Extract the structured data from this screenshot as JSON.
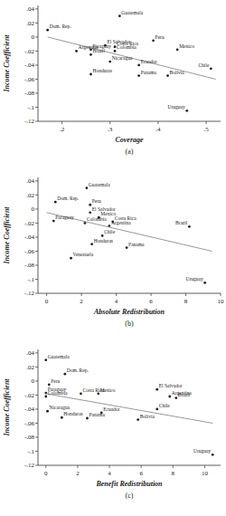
{
  "chart_data": [
    {
      "type": "scatter",
      "title": "(a)",
      "x_label": "Coverage",
      "y_label": "Income Coefficient",
      "xlim": [
        0.15,
        0.53
      ],
      "ylim": [
        -0.12,
        0.045
      ],
      "xticks": [
        {
          "value": 0.2,
          "label": ".2"
        },
        {
          "value": 0.3,
          "label": ".3"
        },
        {
          "value": 0.4,
          "label": ".4"
        },
        {
          "value": 0.5,
          "label": ".5"
        }
      ],
      "yticks": [
        {
          "value": 0.04,
          "label": ".04"
        },
        {
          "value": 0.02,
          "label": ".02"
        },
        0,
        {
          "value": -0.02,
          "label": "-.02"
        },
        {
          "value": -0.04,
          "label": "-.04"
        },
        {
          "value": -0.06,
          "label": "-.06"
        },
        {
          "value": -0.08,
          "label": "-.08"
        },
        {
          "value": -0.1,
          "label": "-.1"
        },
        {
          "value": -0.12,
          "label": "-.12"
        }
      ],
      "series": [
        {
          "type": "scatter",
          "color": "#222222",
          "marker": "circle",
          "labels": [
            "Dom. Rep.",
            "Guatemala",
            "Peru",
            "El Salvador",
            "Costa Rica",
            "Paraguay",
            "Colombia",
            "Argentina",
            "Brazil",
            "Mexico",
            "Nicaragua",
            "Ecuador",
            "Honduras",
            "Panama",
            "Bolivia",
            "Chile",
            "Uruguay"
          ],
          "x": [
            0.17,
            0.32,
            0.39,
            0.29,
            0.31,
            0.26,
            0.31,
            0.23,
            0.26,
            0.44,
            0.3,
            0.36,
            0.26,
            0.36,
            0.42,
            0.51,
            0.46
          ],
          "values": [
            0.01,
            0.03,
            -0.005,
            -0.012,
            -0.014,
            -0.018,
            -0.02,
            -0.02,
            -0.025,
            -0.018,
            -0.035,
            -0.04,
            -0.053,
            -0.055,
            -0.055,
            -0.045,
            -0.105
          ]
        },
        {
          "type": "line",
          "color": "#999999",
          "line_style": "solid",
          "x": [
            0.17,
            0.52
          ],
          "values": [
            0.0,
            -0.06
          ]
        }
      ]
    },
    {
      "type": "scatter",
      "title": "(b)",
      "x_label": "Absolute Redistribution",
      "y_label": "Income Coefficient",
      "xlim": [
        -0.5,
        10
      ],
      "ylim": [
        -0.12,
        0.045
      ],
      "xticks": [
        0,
        2,
        4,
        6,
        8,
        10
      ],
      "yticks": [
        {
          "value": 0.04,
          "label": ".04"
        },
        {
          "value": 0.02,
          "label": ".02"
        },
        0,
        {
          "value": -0.02,
          "label": "-.02"
        },
        {
          "value": -0.04,
          "label": "-.04"
        },
        {
          "value": -0.06,
          "label": "-.06"
        },
        {
          "value": -0.08,
          "label": "-.08"
        },
        {
          "value": -0.1,
          "label": "-.1"
        },
        {
          "value": -0.12,
          "label": "-.12"
        }
      ],
      "series": [
        {
          "type": "scatter",
          "color": "#222222",
          "marker": "circle",
          "labels": [
            "Dom. Rep.",
            "Guatemala",
            "Peru",
            "El Salvador",
            "Paraguay",
            "Colombia",
            "Mexico",
            "Costa Rica",
            "Argentina",
            "Chile",
            "Honduras",
            "Panama",
            "Venezuela",
            "Brazil",
            "Uruguay"
          ],
          "x": [
            0.5,
            2.3,
            2.5,
            2.5,
            0.4,
            2.2,
            3.0,
            3.8,
            3.6,
            3.2,
            2.6,
            4.6,
            1.4,
            8.2,
            9.1
          ],
          "values": [
            0.01,
            0.03,
            0.006,
            -0.005,
            -0.017,
            -0.02,
            -0.012,
            -0.018,
            -0.024,
            -0.038,
            -0.05,
            -0.055,
            -0.07,
            -0.025,
            -0.105
          ]
        },
        {
          "type": "line",
          "color": "#999999",
          "line_style": "solid",
          "x": [
            0,
            9.5
          ],
          "values": [
            -0.005,
            -0.06
          ]
        }
      ]
    },
    {
      "type": "scatter",
      "title": "(c)",
      "x_label": "Benefit Redistribution",
      "y_label": "Income Coefficient",
      "xlim": [
        -0.5,
        11
      ],
      "ylim": [
        -0.12,
        0.045
      ],
      "xticks": [
        0,
        2,
        4,
        6,
        8,
        10
      ],
      "yticks": [
        {
          "value": 0.04,
          "label": ".04"
        },
        {
          "value": 0.02,
          "label": ".02"
        },
        0,
        {
          "value": -0.02,
          "label": "-.02"
        },
        {
          "value": -0.04,
          "label": "-.04"
        },
        {
          "value": -0.06,
          "label": "-.06"
        },
        {
          "value": -0.08,
          "label": "-.08"
        },
        {
          "value": -0.1,
          "label": "-.1"
        },
        {
          "value": -0.12,
          "label": "-.12"
        }
      ],
      "series": [
        {
          "type": "scatter",
          "color": "#222222",
          "marker": "circle",
          "labels": [
            "Guatemala",
            "Dom. Rep.",
            "Peru",
            "Paraguay",
            "Colombia",
            "Costa Rica",
            "Mexico",
            "El Salvador",
            "Argentina",
            "Brazil",
            "Nicaragua",
            "Honduras",
            "Panama",
            "Ecuador",
            "Bolivia",
            "Chile",
            "Uruguay"
          ],
          "x": [
            0,
            1.2,
            0.2,
            0,
            0,
            2.2,
            3.3,
            7.0,
            7.8,
            8.2,
            0.1,
            1.0,
            2.6,
            3.5,
            5.8,
            7.0,
            10.5
          ],
          "values": [
            0.03,
            0.01,
            -0.005,
            -0.017,
            -0.022,
            -0.018,
            -0.018,
            -0.012,
            -0.022,
            -0.024,
            -0.043,
            -0.052,
            -0.053,
            -0.045,
            -0.055,
            -0.04,
            -0.105
          ]
        },
        {
          "type": "line",
          "color": "#999999",
          "line_style": "solid",
          "x": [
            0,
            10.5
          ],
          "values": [
            -0.018,
            -0.06
          ]
        }
      ]
    }
  ]
}
